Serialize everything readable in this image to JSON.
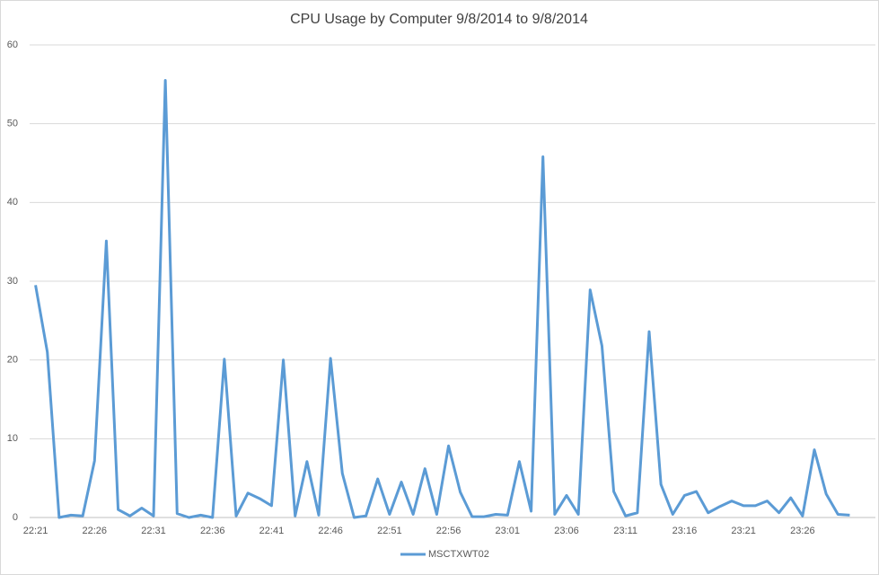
{
  "chart_data": {
    "type": "line",
    "title": "CPU Usage by Computer 9/8/2014 to 9/8/2014",
    "categories": [
      "22:21",
      null,
      null,
      null,
      null,
      "22:26",
      null,
      null,
      null,
      null,
      "22:31",
      null,
      null,
      null,
      null,
      "22:36",
      null,
      null,
      null,
      null,
      "22:41",
      null,
      null,
      null,
      null,
      "22:46",
      null,
      null,
      null,
      null,
      "22:51",
      null,
      null,
      null,
      null,
      "22:56",
      null,
      null,
      null,
      null,
      "23:01",
      null,
      null,
      null,
      null,
      "23:06",
      null,
      null,
      null,
      null,
      "23:11",
      null,
      null,
      null,
      null,
      "23:16",
      null,
      null,
      null,
      null,
      "23:21",
      null,
      null,
      null,
      null,
      "23:26",
      null,
      null,
      null,
      null
    ],
    "series": [
      {
        "name": "MSCTXWT02",
        "color": "#5b9bd5",
        "values": [
          29.5,
          21,
          0,
          0.3,
          0.2,
          7.2,
          35.1,
          1,
          0.2,
          1.2,
          0.2,
          55.5,
          0.5,
          0,
          0.3,
          0,
          20.1,
          0.2,
          3.1,
          2.4,
          1.5,
          20,
          0.2,
          7.1,
          0.3,
          20.2,
          5.6,
          0,
          0.2,
          4.9,
          0.4,
          4.5,
          0.4,
          6.2,
          0.4,
          9.1,
          3.2,
          0.1,
          0.1,
          0.4,
          0.3,
          7.1,
          0.8,
          45.8,
          0.4,
          2.8,
          0.4,
          28.9,
          21.8,
          3.3,
          0.2,
          0.6,
          23.6,
          4.2,
          0.4,
          2.8,
          3.3,
          0.6,
          1.4,
          2.1,
          1.5,
          1.5,
          2.1,
          0.6,
          2.5,
          0.2,
          8.6,
          3,
          0.4,
          0.3
        ]
      }
    ],
    "ylim": [
      0,
      60
    ],
    "yticks": [
      0,
      10,
      20,
      30,
      40,
      50,
      60
    ],
    "grid": true,
    "legend": "bottom"
  }
}
